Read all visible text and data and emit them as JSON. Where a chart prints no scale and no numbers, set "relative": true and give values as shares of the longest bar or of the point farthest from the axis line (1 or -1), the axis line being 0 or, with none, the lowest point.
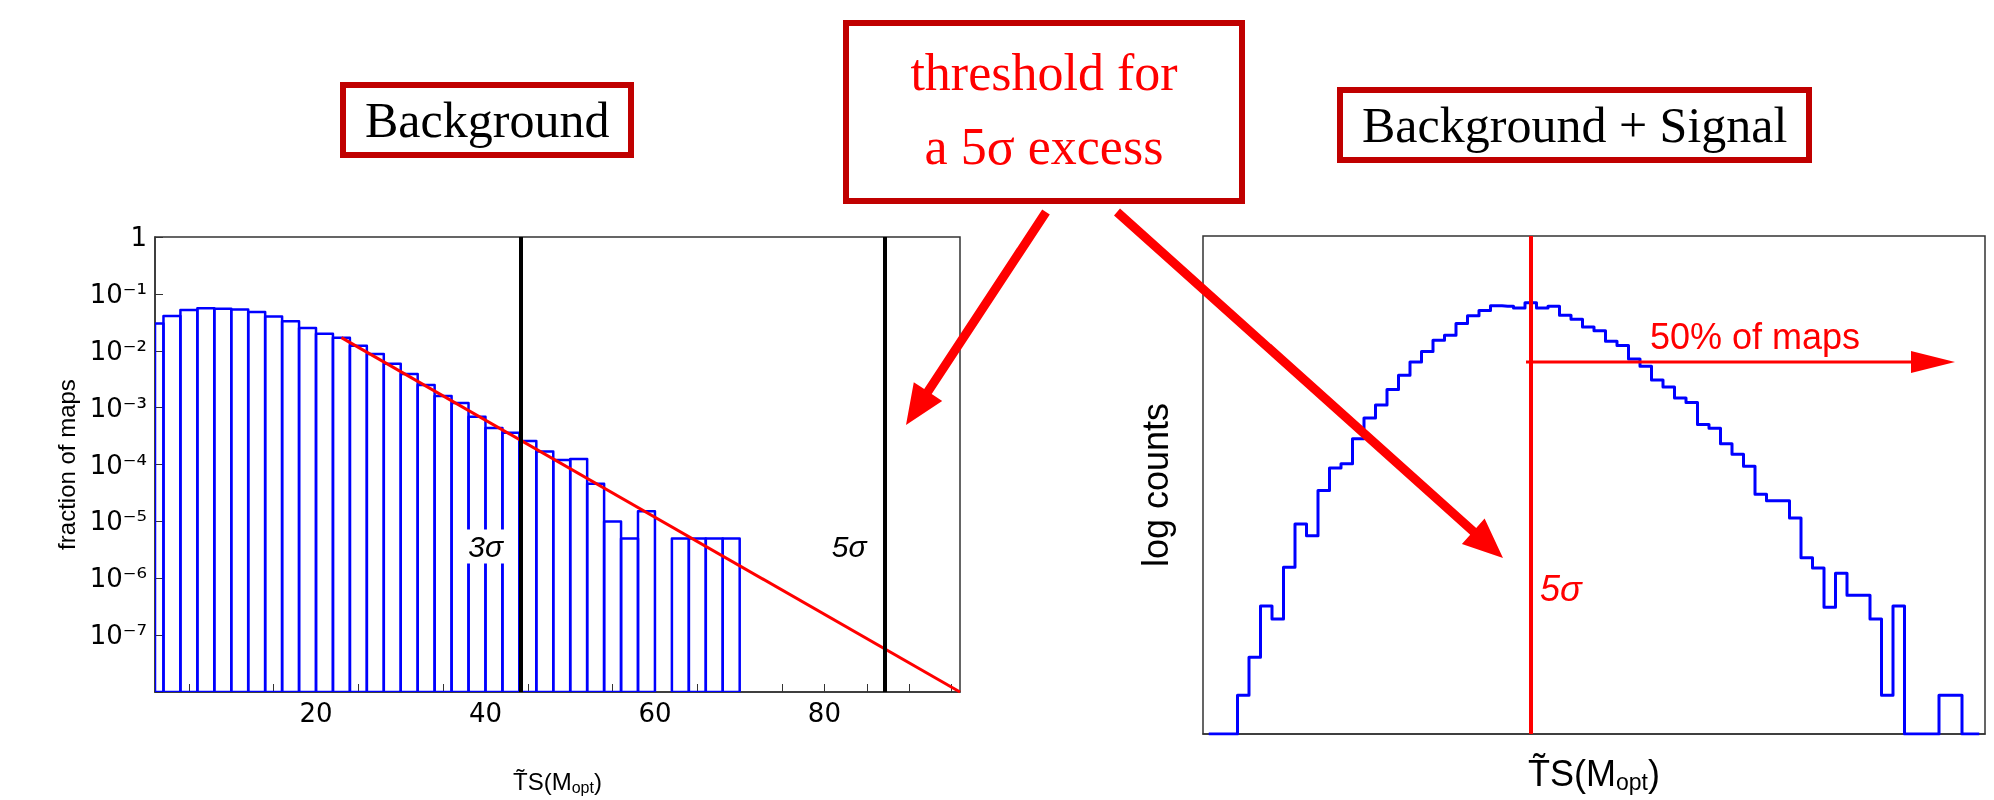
{
  "chart_data": [
    {
      "type": "histogram",
      "title": "Background",
      "xlabel": "T̃S(M$_{opt}$)",
      "ylabel": "fraction of maps",
      "log": "y",
      "bins": [
        1,
        2,
        4,
        6,
        8,
        10,
        12,
        14,
        16,
        18,
        20,
        22,
        24,
        26,
        28,
        30,
        32,
        34,
        36,
        38,
        40,
        42,
        44,
        46,
        48,
        50,
        52,
        54,
        56,
        58,
        60,
        62,
        64,
        66,
        68,
        70
      ],
      "series": [
        {
          "type": "histogram",
          "color": "#0000ff",
          "values": [
            0.03,
            0.041,
            0.052,
            0.056,
            0.055,
            0.053,
            0.048,
            0.04,
            0.033,
            0.025,
            0.02,
            0.017,
            0.0123,
            0.0088,
            0.0059,
            0.0039,
            0.0025,
            0.0016,
            0.0012,
            0.00069,
            0.00044,
            0.00036,
            0.00026,
            0.00017,
            0.00012,
            0.000125,
            4.6e-05,
            1e-05,
            5e-06,
            1.5e-05,
            null,
            5e-06,
            5e-06,
            5e-06,
            5e-06
          ]
        },
        {
          "type": "line",
          "color": "#ff0000",
          "x": [
            23,
            96
          ],
          "values": [
            0.017,
            1e-08
          ]
        }
      ],
      "xlim": [
        1,
        96
      ],
      "xticks": [
        {
          "value": 5,
          "label": null
        },
        {
          "value": 10,
          "label": null
        },
        {
          "value": 15,
          "label": null
        },
        20,
        {
          "value": 25,
          "label": null
        },
        {
          "value": 30,
          "label": null
        },
        {
          "value": 35,
          "label": null
        },
        40,
        {
          "value": 45,
          "label": null
        },
        {
          "value": 50,
          "label": null
        },
        {
          "value": 55,
          "label": null
        },
        60,
        {
          "value": 65,
          "label": null
        },
        {
          "value": 70,
          "label": null
        },
        {
          "value": 75,
          "label": null
        },
        80,
        {
          "value": 85,
          "label": null
        },
        {
          "value": 90,
          "label": null
        },
        {
          "value": 95,
          "label": null
        }
      ],
      "ylim": [
        1e-08,
        1
      ],
      "yticks": [
        {
          "value": 1e-08,
          "label": null
        },
        {
          "value": 1e-07,
          "label": "10⁻⁷"
        },
        {
          "value": 1e-06,
          "label": "10⁻⁶"
        },
        {
          "value": 1e-05,
          "label": "10⁻⁵"
        },
        {
          "value": 0.0001,
          "label": "10⁻⁴"
        },
        {
          "value": 0.001,
          "label": "10⁻³"
        },
        {
          "value": 0.01,
          "label": "10⁻²"
        },
        {
          "value": 0.1,
          "label": "10⁻¹"
        },
        1
      ],
      "ref_lines": [
        {
          "axis": "x",
          "value": 44.2,
          "label": "3σ",
          "color": "#000000"
        },
        {
          "axis": "x",
          "value": 87.1,
          "label": "5σ",
          "color": "#000000"
        }
      ],
      "annotations": [
        "threshold for a 5σ excess"
      ]
    },
    {
      "type": "step",
      "title": "Background + Signal",
      "xlabel": "T̃S(M$_{opt}$)",
      "ylabel": "log counts",
      "relative": true,
      "color": "#0000ff",
      "categories": [
        null,
        null,
        null,
        null,
        null,
        null,
        null,
        null,
        null,
        null,
        null,
        null,
        null,
        null,
        null,
        null,
        null,
        null,
        null,
        null,
        null,
        null,
        null,
        null,
        null,
        null,
        null,
        null,
        null,
        null,
        null,
        null,
        null,
        null,
        null,
        null,
        null,
        null,
        null,
        null,
        null,
        null,
        null,
        null,
        null,
        null,
        null,
        null,
        null,
        null,
        null,
        null,
        null,
        null,
        null,
        null,
        null,
        null,
        null,
        null,
        null,
        null,
        null,
        null,
        null,
        null,
        null,
        null
      ],
      "values": [
        0,
        0,
        0,
        0.09,
        0.178,
        0.297,
        0.267,
        0.387,
        0.487,
        0.46,
        0.565,
        0.617,
        0.627,
        0.685,
        0.733,
        0.763,
        0.799,
        0.832,
        0.863,
        0.887,
        0.913,
        0.925,
        0.952,
        0.97,
        0.982,
        0.993,
        0.992,
        0.988,
        1.0,
        0.988,
        0.992,
        0.971,
        0.962,
        0.944,
        0.935,
        0.911,
        0.901,
        0.87,
        0.853,
        0.821,
        0.805,
        0.779,
        0.769,
        0.718,
        0.709,
        0.673,
        0.649,
        0.621,
        0.556,
        0.541,
        0.541,
        0.501,
        0.409,
        0.385,
        0.294,
        0.373,
        0.322,
        0.322,
        0.267,
        0.09,
        0.297,
        0,
        0,
        0,
        0.09,
        0.09,
        0,
        0
      ],
      "annotations": [
        "50% of maps",
        "5σ"
      ]
    }
  ]
}
